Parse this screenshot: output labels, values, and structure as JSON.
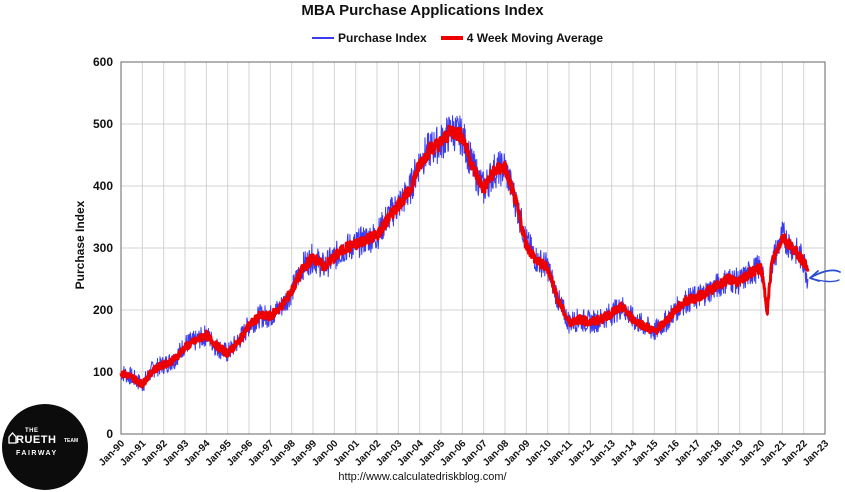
{
  "chart_data": {
    "type": "line",
    "title": "MBA Purchase Applications Index",
    "ylabel": "Purchase Index",
    "xlabel": "",
    "ylim": [
      0,
      600
    ],
    "yticks": [
      "0",
      "100",
      "200",
      "300",
      "400",
      "500",
      "600"
    ],
    "xticks": [
      "Jan-90",
      "Jan-91",
      "Jan-92",
      "Jan-93",
      "Jan-94",
      "Jan-95",
      "Jan-96",
      "Jan-97",
      "Jan-98",
      "Jan-99",
      "Jan-00",
      "Jan-01",
      "Jan-02",
      "Jan-03",
      "Jan-04",
      "Jan-05",
      "Jan-06",
      "Jan-07",
      "Jan-08",
      "Jan-09",
      "Jan-10",
      "Jan-11",
      "Jan-12",
      "Jan-13",
      "Jan-14",
      "Jan-15",
      "Jan-16",
      "Jan-17",
      "Jan-18",
      "Jan-19",
      "Jan-20",
      "Jan-21",
      "Jan-22",
      "Jan-23"
    ],
    "xlim": [
      1990,
      2023
    ],
    "grid": true,
    "legend_position": "top-center",
    "series": [
      {
        "name": "Purchase Index",
        "color": "#3b3bf0",
        "x": [
          1990,
          1990.5,
          1991,
          1991.5,
          1992,
          1992.5,
          1993,
          1993.5,
          1994,
          1994.5,
          1995,
          1995.5,
          1996,
          1996.5,
          1997,
          1997.5,
          1998,
          1998.5,
          1999,
          1999.5,
          2000,
          2000.5,
          2001,
          2001.5,
          2002,
          2002.5,
          2003,
          2003.5,
          2004,
          2004.5,
          2005,
          2005.5,
          2006,
          2006.5,
          2007,
          2007.5,
          2008,
          2008.5,
          2009,
          2009.5,
          2010,
          2010.5,
          2011,
          2011.5,
          2012,
          2012.5,
          2013,
          2013.5,
          2014,
          2014.5,
          2015,
          2015.5,
          2016,
          2016.5,
          2017,
          2017.5,
          2018,
          2018.5,
          2019,
          2019.5,
          2020,
          2020.3,
          2020.5,
          2021,
          2021.5,
          2022,
          2022.2
        ],
        "values": [
          100,
          92,
          80,
          105,
          112,
          120,
          145,
          150,
          160,
          140,
          130,
          150,
          175,
          190,
          190,
          205,
          230,
          270,
          285,
          270,
          285,
          300,
          305,
          315,
          320,
          350,
          370,
          390,
          440,
          460,
          470,
          490,
          480,
          430,
          395,
          425,
          430,
          375,
          310,
          280,
          270,
          215,
          180,
          185,
          180,
          185,
          195,
          205,
          185,
          175,
          165,
          180,
          200,
          215,
          220,
          230,
          240,
          250,
          245,
          260,
          270,
          200,
          275,
          320,
          300,
          280,
          250
        ]
      },
      {
        "name": "4 Week Moving Average",
        "color": "#ee0000",
        "x": [
          1990,
          1990.5,
          1991,
          1991.5,
          1992,
          1992.5,
          1993,
          1993.5,
          1994,
          1994.5,
          1995,
          1995.5,
          1996,
          1996.5,
          1997,
          1997.5,
          1998,
          1998.5,
          1999,
          1999.5,
          2000,
          2000.5,
          2001,
          2001.5,
          2002,
          2002.5,
          2003,
          2003.5,
          2004,
          2004.5,
          2005,
          2005.5,
          2006,
          2006.5,
          2007,
          2007.5,
          2008,
          2008.5,
          2009,
          2009.5,
          2010,
          2010.5,
          2011,
          2011.5,
          2012,
          2012.5,
          2013,
          2013.5,
          2014,
          2014.5,
          2015,
          2015.5,
          2016,
          2016.5,
          2017,
          2017.5,
          2018,
          2018.5,
          2019,
          2019.5,
          2020,
          2020.3,
          2020.5,
          2021,
          2021.5,
          2022,
          2022.2
        ],
        "values": [
          98,
          92,
          80,
          103,
          112,
          120,
          140,
          150,
          160,
          142,
          130,
          148,
          175,
          190,
          190,
          205,
          230,
          265,
          285,
          270,
          285,
          300,
          305,
          315,
          320,
          345,
          370,
          390,
          435,
          460,
          470,
          490,
          480,
          430,
          395,
          425,
          430,
          375,
          305,
          278,
          268,
          215,
          180,
          185,
          180,
          185,
          195,
          205,
          185,
          175,
          165,
          180,
          200,
          215,
          220,
          230,
          240,
          250,
          245,
          260,
          268,
          200,
          275,
          318,
          300,
          278,
          262
        ]
      }
    ]
  },
  "source_text": "http://www.calculatedriskblog.com/",
  "logo": {
    "the": "THE",
    "name": "RUETH",
    "team": "TEAM",
    "fairway": "FAIRWAY"
  },
  "colors": {
    "series_blue": "#3b3bf0",
    "series_red": "#ee0000",
    "arrow": "#2a4fd6",
    "grid": "#d3d3d3"
  }
}
